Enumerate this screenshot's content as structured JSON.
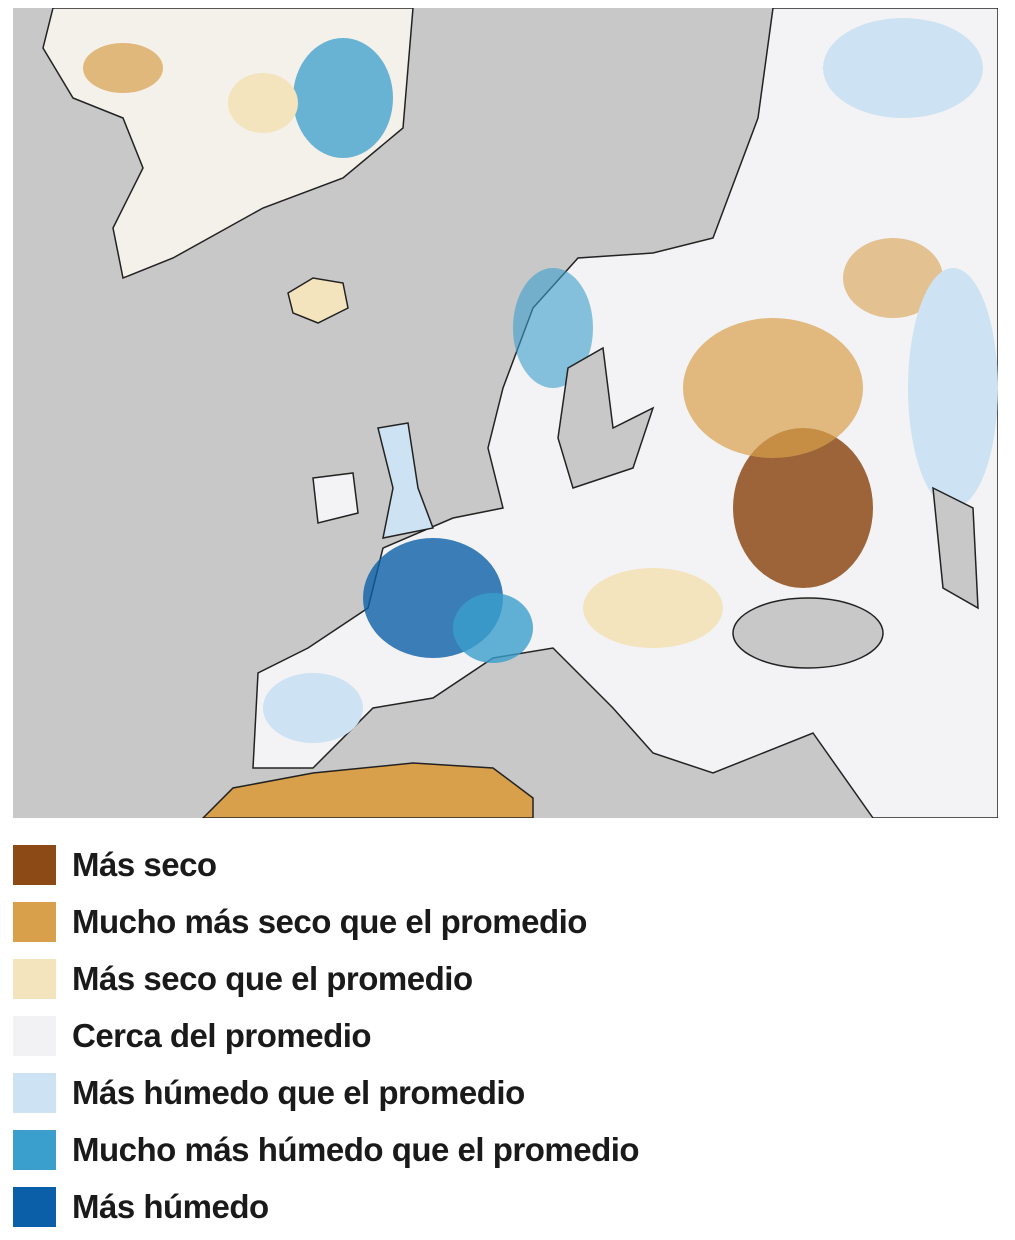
{
  "legend": [
    {
      "label": "Más seco",
      "color": "#8c4a16"
    },
    {
      "label": "Mucho más seco que el promedio",
      "color": "#d9a04c"
    },
    {
      "label": "Más seco que el promedio",
      "color": "#f3e4bd"
    },
    {
      "label": "Cerca del promedio",
      "color": "#f2f2f4"
    },
    {
      "label": "Más húmedo que el promedio",
      "color": "#cde2f2"
    },
    {
      "label": "Mucho más húmedo que el promedio",
      "color": "#3a9fcc"
    },
    {
      "label": "Más húmedo",
      "color": "#0b5fa8"
    }
  ]
}
